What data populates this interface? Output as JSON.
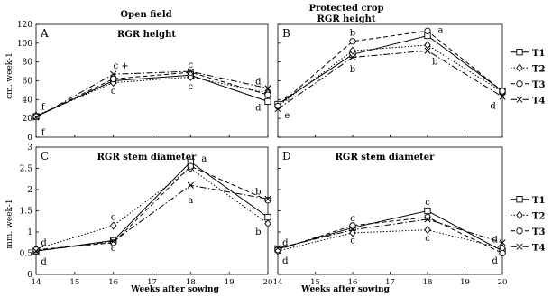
{
  "headers": {
    "open_field": "Open field",
    "protected_line1": "Protected crop",
    "protected_line2": "RGR height"
  },
  "axis_labels": {
    "y_top": "cm. week-1",
    "y_bottom": "mm. week-1",
    "x_left": "Weeks after sowing",
    "x_right": "Weeks after sowing"
  },
  "legend": [
    "T1",
    "T2",
    "T3",
    "T4"
  ],
  "chart_data": [
    {
      "panel": "A",
      "type": "line",
      "title": "RGR height",
      "x": [
        14,
        16,
        18,
        20
      ],
      "xlim": [
        14,
        20
      ],
      "ylim": [
        0,
        120
      ],
      "xticks": [
        "14",
        "15",
        "16",
        "17",
        "18",
        "19",
        "20"
      ],
      "yticks": [
        "0",
        "20",
        "40",
        "60",
        "80",
        "100",
        "120"
      ],
      "series": [
        {
          "name": "T1",
          "values": [
            22,
            60,
            66,
            38
          ]
        },
        {
          "name": "T2",
          "values": [
            23,
            58,
            64,
            47
          ]
        },
        {
          "name": "T3",
          "values": [
            22,
            62,
            69,
            45
          ]
        },
        {
          "name": "T4",
          "values": [
            21,
            67,
            70,
            52
          ]
        }
      ],
      "annotations": [
        {
          "text": "f",
          "x": 14.18,
          "y": 32
        },
        {
          "text": "f",
          "x": 14.18,
          "y": 5
        },
        {
          "text": "c +",
          "x": 16.2,
          "y": 76
        },
        {
          "text": "c",
          "x": 16,
          "y": 49
        },
        {
          "text": "c",
          "x": 18,
          "y": 77
        },
        {
          "text": "c",
          "x": 18,
          "y": 54
        },
        {
          "text": "d",
          "x": 19.75,
          "y": 59
        },
        {
          "text": "d",
          "x": 19.75,
          "y": 31
        }
      ]
    },
    {
      "panel": "B",
      "type": "line",
      "title": "",
      "x": [
        14,
        16,
        18,
        20
      ],
      "xlim": [
        14,
        20
      ],
      "ylim": [
        0,
        120
      ],
      "xticks": [
        "14",
        "15",
        "16",
        "17",
        "18",
        "19",
        "20"
      ],
      "yticks": [
        "0",
        "20",
        "40",
        "60",
        "80",
        "100",
        "120"
      ],
      "series": [
        {
          "name": "T1",
          "values": [
            35,
            88,
            108,
            49
          ]
        },
        {
          "name": "T2",
          "values": [
            33,
            92,
            98,
            48
          ]
        },
        {
          "name": "T3",
          "values": [
            33,
            102,
            113,
            49
          ]
        },
        {
          "name": "T4",
          "values": [
            30,
            85,
            92,
            43
          ]
        }
      ],
      "annotations": [
        {
          "text": "e",
          "x": 14.25,
          "y": 42
        },
        {
          "text": "e",
          "x": 14.25,
          "y": 23
        },
        {
          "text": "b",
          "x": 16,
          "y": 111
        },
        {
          "text": "b",
          "x": 16,
          "y": 72
        },
        {
          "text": "a",
          "x": 18.35,
          "y": 114
        },
        {
          "text": "b",
          "x": 18.2,
          "y": 80
        },
        {
          "text": "d",
          "x": 19.75,
          "y": 33
        }
      ]
    },
    {
      "panel": "C",
      "type": "line",
      "title": "RGR stem diameter",
      "x": [
        14,
        16,
        18,
        20
      ],
      "xlim": [
        14,
        20
      ],
      "ylim": [
        0,
        3
      ],
      "xticks": [
        "14",
        "15",
        "16",
        "17",
        "18",
        "19",
        "20"
      ],
      "yticks": [
        "0",
        "0.5",
        "1",
        "1.5",
        "2",
        "2.5",
        "3"
      ],
      "series": [
        {
          "name": "T1",
          "values": [
            0.55,
            0.8,
            2.65,
            1.35
          ]
        },
        {
          "name": "T2",
          "values": [
            0.6,
            1.15,
            2.5,
            1.2
          ]
        },
        {
          "name": "T3",
          "values": [
            0.58,
            0.75,
            2.55,
            1.75
          ]
        },
        {
          "name": "T4",
          "values": [
            0.55,
            0.78,
            2.1,
            1.78
          ]
        }
      ],
      "annotations": [
        {
          "text": "d",
          "x": 14.2,
          "y": 0.75
        },
        {
          "text": "d",
          "x": 14.2,
          "y": 0.3
        },
        {
          "text": "c",
          "x": 16,
          "y": 1.35
        },
        {
          "text": "c",
          "x": 16,
          "y": 0.62
        },
        {
          "text": "a",
          "x": 18.35,
          "y": 2.72
        },
        {
          "text": "a",
          "x": 18,
          "y": 1.75
        },
        {
          "text": "b",
          "x": 19.75,
          "y": 1.95
        },
        {
          "text": "b",
          "x": 19.75,
          "y": 1.0
        }
      ]
    },
    {
      "panel": "D",
      "type": "line",
      "title": "RGR stem diameter",
      "x": [
        14,
        16,
        18,
        20
      ],
      "xlim": [
        14,
        20
      ],
      "ylim": [
        0,
        3
      ],
      "xticks": [
        "14",
        "15",
        "16",
        "17",
        "18",
        "19",
        "20"
      ],
      "yticks": [
        "0",
        "0.5",
        "1",
        "1.5",
        "2",
        "2.5",
        "3"
      ],
      "series": [
        {
          "name": "T1",
          "values": [
            0.6,
            1.1,
            1.5,
            0.55
          ]
        },
        {
          "name": "T2",
          "values": [
            0.55,
            0.98,
            1.05,
            0.62
          ]
        },
        {
          "name": "T3",
          "values": [
            0.58,
            1.15,
            1.35,
            0.5
          ]
        },
        {
          "name": "T4",
          "values": [
            0.62,
            1.05,
            1.3,
            0.75
          ]
        }
      ],
      "annotations": [
        {
          "text": "d",
          "x": 14.2,
          "y": 0.75
        },
        {
          "text": "d",
          "x": 14.2,
          "y": 0.32
        },
        {
          "text": "c",
          "x": 16,
          "y": 1.32
        },
        {
          "text": "c",
          "x": 16,
          "y": 0.8
        },
        {
          "text": "c",
          "x": 18,
          "y": 1.7
        },
        {
          "text": "c",
          "x": 18,
          "y": 0.85
        },
        {
          "text": "d",
          "x": 19.8,
          "y": 0.82
        },
        {
          "text": "d",
          "x": 19.8,
          "y": 0.32
        }
      ]
    }
  ]
}
